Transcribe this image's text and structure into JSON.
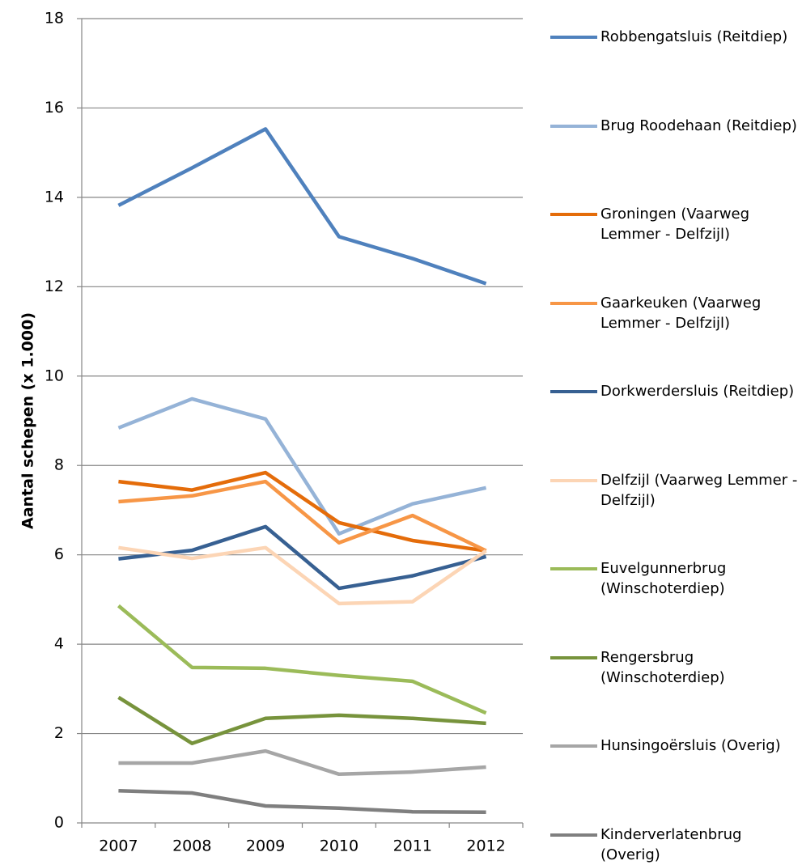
{
  "chart_data": {
    "type": "line",
    "y_label": "Aantal schepen (x 1.000)",
    "categories": [
      "2007",
      "2008",
      "2009",
      "2010",
      "2011",
      "2012"
    ],
    "series": [
      {
        "name": "Robbengatsluis (Reitdiep)",
        "color": "#4f81bd",
        "values": [
          13.82,
          14.66,
          15.53,
          13.12,
          12.63,
          12.07
        ]
      },
      {
        "name": "Brug Roodehaan (Reitdiep)",
        "color": "#95b3d7",
        "values": [
          8.84,
          9.49,
          9.04,
          6.47,
          7.14,
          7.5
        ]
      },
      {
        "name": "Groningen (Vaarweg Lemmer - Delfzijl)",
        "color": "#e46c0a",
        "values": [
          7.64,
          7.45,
          7.84,
          6.72,
          6.32,
          6.09
        ]
      },
      {
        "name": "Gaarkeuken (Vaarweg Lemmer - Delfzijl)",
        "color": "#f79646",
        "values": [
          7.19,
          7.32,
          7.64,
          6.27,
          6.88,
          6.09
        ]
      },
      {
        "name": "Dorkwerdersluis (Reitdiep)",
        "color": "#376092",
        "values": [
          5.91,
          6.1,
          6.63,
          5.25,
          5.53,
          5.96
        ]
      },
      {
        "name": "Delfzijl (Vaarweg Lemmer - Delfzijl)",
        "color": "#fcd5b5",
        "values": [
          6.16,
          5.92,
          6.16,
          4.91,
          4.95,
          6.09
        ]
      },
      {
        "name": "Euvelgunnerbrug (Winschoterdiep)",
        "color": "#9bbb59",
        "values": [
          4.86,
          3.48,
          3.46,
          3.3,
          3.17,
          2.46
        ]
      },
      {
        "name": "Rengersbrug (Winschoterdiep)",
        "color": "#77933c",
        "values": [
          2.81,
          1.78,
          2.34,
          2.41,
          2.34,
          2.23
        ]
      },
      {
        "name": "Hunsingoërsluis (Overig)",
        "color": "#a6a6a6",
        "values": [
          1.34,
          1.34,
          1.61,
          1.09,
          1.14,
          1.25
        ]
      },
      {
        "name": "Kinderverlatenbrug (Overig)",
        "color": "#7f7f7f",
        "values": [
          0.72,
          0.67,
          0.38,
          0.33,
          0.25,
          0.24
        ]
      }
    ],
    "ylim": [
      0,
      18
    ],
    "yticks": [
      0,
      2,
      4,
      6,
      8,
      10,
      12,
      14,
      16,
      18
    ],
    "grid": true,
    "legend": "right"
  }
}
